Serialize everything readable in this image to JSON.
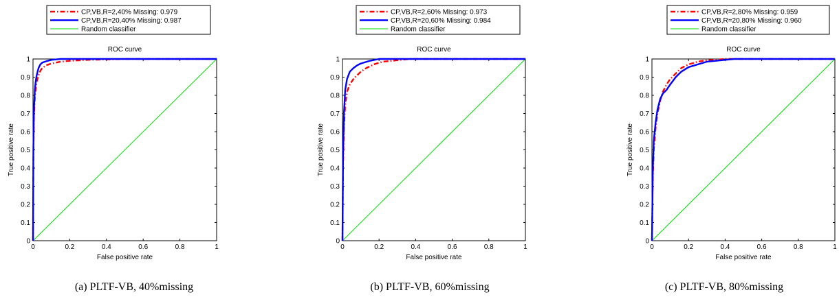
{
  "chart_data": [
    {
      "type": "line",
      "title": "ROC curve",
      "xlabel": "False positive rate",
      "ylabel": "True positive rate",
      "xlim": [
        0,
        1
      ],
      "ylim": [
        0,
        1
      ],
      "xticks": [
        "0",
        "0.2",
        "0.4",
        "0.6",
        "0.8",
        "1"
      ],
      "yticks": [
        "0",
        "0.1",
        "0.2",
        "0.3",
        "0.4",
        "0.5",
        "0.6",
        "0.7",
        "0.8",
        "0.9",
        "1"
      ],
      "legend_position": "top",
      "caption": "(a) PLTF-VB, 40%missing",
      "series": [
        {
          "name": "CP,VB,R=2,40% Missing: 0.979",
          "color": "#ff0000",
          "style": "dashdot",
          "x": [
            0,
            0.002,
            0.005,
            0.01,
            0.015,
            0.02,
            0.03,
            0.04,
            0.05,
            0.07,
            0.1,
            0.15,
            0.2,
            0.3,
            0.5,
            1
          ],
          "y": [
            0,
            0.45,
            0.68,
            0.79,
            0.84,
            0.875,
            0.91,
            0.935,
            0.95,
            0.965,
            0.975,
            0.985,
            0.99,
            0.995,
            1,
            1
          ]
        },
        {
          "name": "CP,VB,R=20,40% Missing: 0.987",
          "color": "#0000ff",
          "style": "solid",
          "x": [
            0,
            0.002,
            0.005,
            0.01,
            0.015,
            0.02,
            0.03,
            0.04,
            0.05,
            0.08,
            0.1,
            0.15,
            0.3,
            1
          ],
          "y": [
            0,
            0.5,
            0.72,
            0.83,
            0.88,
            0.91,
            0.95,
            0.97,
            0.98,
            0.99,
            0.995,
            1,
            1,
            1
          ]
        },
        {
          "name": "Random classifier",
          "color": "#00dd00",
          "style": "solid",
          "x": [
            0,
            1
          ],
          "y": [
            0,
            1
          ]
        }
      ]
    },
    {
      "type": "line",
      "title": "ROC curve",
      "xlabel": "False positive rate",
      "ylabel": "True positive rate",
      "xlim": [
        0,
        1
      ],
      "ylim": [
        0,
        1
      ],
      "xticks": [
        "0",
        "0.2",
        "0.4",
        "0.6",
        "0.8",
        "1"
      ],
      "yticks": [
        "0",
        "0.1",
        "0.2",
        "0.3",
        "0.4",
        "0.5",
        "0.6",
        "0.7",
        "0.8",
        "0.9",
        "1"
      ],
      "legend_position": "top",
      "caption": "(b) PLTF-VB, 60%missing",
      "series": [
        {
          "name": "CP,VB,R=2,60% Missing: 0.973",
          "color": "#ff0000",
          "style": "dashdot",
          "x": [
            0,
            0.003,
            0.008,
            0.015,
            0.025,
            0.04,
            0.06,
            0.08,
            0.1,
            0.13,
            0.17,
            0.22,
            0.3,
            0.37,
            0.5,
            1
          ],
          "y": [
            0,
            0.4,
            0.62,
            0.75,
            0.82,
            0.86,
            0.89,
            0.91,
            0.93,
            0.95,
            0.97,
            0.985,
            0.993,
            1,
            1,
            1
          ]
        },
        {
          "name": "CP,VB,R=20,60% Missing: 0.984",
          "color": "#0000ff",
          "style": "solid",
          "x": [
            0,
            0.003,
            0.008,
            0.015,
            0.025,
            0.04,
            0.06,
            0.08,
            0.1,
            0.15,
            0.2,
            0.3,
            1
          ],
          "y": [
            0,
            0.45,
            0.7,
            0.83,
            0.89,
            0.93,
            0.95,
            0.965,
            0.975,
            0.99,
            1,
            1,
            1
          ]
        },
        {
          "name": "Random classifier",
          "color": "#00dd00",
          "style": "solid",
          "x": [
            0,
            1
          ],
          "y": [
            0,
            1
          ]
        }
      ]
    },
    {
      "type": "line",
      "title": "ROC curve",
      "xlabel": "False positive rate",
      "ylabel": "True positive rate",
      "xlim": [
        0,
        1
      ],
      "ylim": [
        0,
        1
      ],
      "xticks": [
        "0",
        "0.2",
        "0.4",
        "0.6",
        "0.8",
        "1"
      ],
      "yticks": [
        "0",
        "0.1",
        "0.2",
        "0.3",
        "0.4",
        "0.5",
        "0.6",
        "0.7",
        "0.8",
        "0.9",
        "1"
      ],
      "legend_position": "top",
      "caption": "(c) PLTF-VB, 80%missing",
      "series": [
        {
          "name": "CP,VB,R=2,80% Missing: 0.959",
          "color": "#ff0000",
          "style": "dashdot",
          "x": [
            0,
            0.005,
            0.01,
            0.02,
            0.03,
            0.045,
            0.06,
            0.08,
            0.1,
            0.13,
            0.16,
            0.2,
            0.25,
            0.3,
            0.4,
            1
          ],
          "y": [
            0,
            0.35,
            0.5,
            0.62,
            0.7,
            0.77,
            0.82,
            0.86,
            0.89,
            0.92,
            0.95,
            0.97,
            0.985,
            0.993,
            1,
            1
          ]
        },
        {
          "name": "CP,VB,R=20,80% Missing: 0.960",
          "color": "#0000ff",
          "style": "solid",
          "x": [
            0,
            0.005,
            0.01,
            0.02,
            0.03,
            0.045,
            0.06,
            0.08,
            0.1,
            0.13,
            0.16,
            0.2,
            0.25,
            0.3,
            0.4,
            0.45,
            1
          ],
          "y": [
            0,
            0.4,
            0.55,
            0.65,
            0.72,
            0.78,
            0.81,
            0.83,
            0.86,
            0.9,
            0.93,
            0.955,
            0.97,
            0.985,
            0.995,
            1,
            1
          ]
        },
        {
          "name": "Random classifier",
          "color": "#00dd00",
          "style": "solid",
          "x": [
            0,
            1
          ],
          "y": [
            0,
            1
          ]
        }
      ]
    }
  ]
}
